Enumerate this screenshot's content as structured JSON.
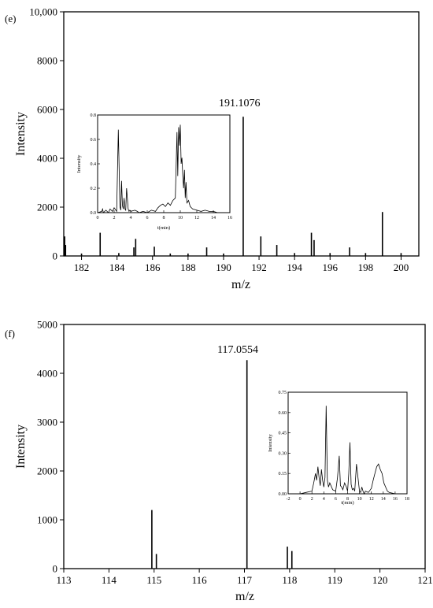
{
  "chart_data": [
    {
      "type": "bar",
      "panel_label": "(e)",
      "xlabel": "m/z",
      "ylabel": "Intensity",
      "xlim": [
        181,
        201
      ],
      "ylim": [
        0,
        10000
      ],
      "xticks": [
        182,
        184,
        186,
        188,
        190,
        192,
        194,
        196,
        198,
        200
      ],
      "yticks": [
        0,
        2000,
        4000,
        6000,
        8000,
        10000
      ],
      "ytick_labels": [
        "0",
        "2000",
        "4000",
        "6000",
        "8000",
        "10,000"
      ],
      "peak_label": "191.1076",
      "peaks": [
        {
          "x": 181.05,
          "y": 800
        },
        {
          "x": 181.1,
          "y": 450
        },
        {
          "x": 182.0,
          "y": 100
        },
        {
          "x": 183.05,
          "y": 950
        },
        {
          "x": 184.1,
          "y": 120
        },
        {
          "x": 184.95,
          "y": 350
        },
        {
          "x": 185.05,
          "y": 700
        },
        {
          "x": 186.1,
          "y": 380
        },
        {
          "x": 187.0,
          "y": 100
        },
        {
          "x": 188.0,
          "y": 100
        },
        {
          "x": 189.05,
          "y": 350
        },
        {
          "x": 190.0,
          "y": 100
        },
        {
          "x": 191.1076,
          "y": 5700
        },
        {
          "x": 192.1,
          "y": 800
        },
        {
          "x": 193.0,
          "y": 450
        },
        {
          "x": 194.0,
          "y": 120
        },
        {
          "x": 194.95,
          "y": 950
        },
        {
          "x": 195.1,
          "y": 650
        },
        {
          "x": 196.0,
          "y": 120
        },
        {
          "x": 197.1,
          "y": 350
        },
        {
          "x": 198.0,
          "y": 120
        },
        {
          "x": 198.95,
          "y": 1800
        },
        {
          "x": 200.0,
          "y": 120
        }
      ],
      "inset": {
        "type": "line",
        "xlabel": "t(min)",
        "ylabel": "Intensity",
        "xlim": [
          0,
          16
        ],
        "ylim": [
          0,
          0.8
        ],
        "xticks": [
          0,
          2,
          4,
          6,
          8,
          10,
          12,
          14,
          16
        ],
        "yticks": [
          0,
          0.2,
          0.4,
          0.6,
          0.8
        ],
        "ytick_labels": [
          "0.0",
          "0.2",
          "0.4",
          "0.6",
          "0.8"
        ],
        "x": [
          0.0,
          0.5,
          0.6,
          0.7,
          1.0,
          1.3,
          1.5,
          1.8,
          2.0,
          2.3,
          2.5,
          2.7,
          2.8,
          2.9,
          3.0,
          3.1,
          3.2,
          3.3,
          3.4,
          3.5,
          3.7,
          3.8,
          3.9,
          4.0,
          4.5,
          4.8,
          5.0,
          5.5,
          6.0,
          6.5,
          7.0,
          7.3,
          7.6,
          7.9,
          8.2,
          8.5,
          8.8,
          9.1,
          9.4,
          9.6,
          9.7,
          9.8,
          9.9,
          10.0,
          10.1,
          10.2,
          10.3,
          10.4,
          10.5,
          10.6,
          10.7,
          10.8,
          11.0,
          11.2,
          11.5,
          12.0,
          12.5,
          13.0,
          13.5,
          14.0,
          14.5,
          15.0,
          16.0
        ],
        "y": [
          0.0,
          0.01,
          0.03,
          0.0,
          0.02,
          0.0,
          0.03,
          0.01,
          0.04,
          0.01,
          0.68,
          0.05,
          0.02,
          0.26,
          0.06,
          0.03,
          0.12,
          0.03,
          0.02,
          0.2,
          0.03,
          0.01,
          0.02,
          0.01,
          0.02,
          0.01,
          0.0,
          0.01,
          0.0,
          0.02,
          0.01,
          0.04,
          0.06,
          0.07,
          0.05,
          0.08,
          0.06,
          0.1,
          0.12,
          0.66,
          0.3,
          0.7,
          0.55,
          0.72,
          0.4,
          0.45,
          0.3,
          0.2,
          0.35,
          0.12,
          0.25,
          0.08,
          0.1,
          0.05,
          0.03,
          0.02,
          0.01,
          0.02,
          0.01,
          0.01,
          0.0,
          0.0,
          0.0
        ]
      }
    },
    {
      "type": "bar",
      "panel_label": "(f)",
      "xlabel": "m/z",
      "ylabel": "Intensity",
      "xlim": [
        113,
        121
      ],
      "ylim": [
        0,
        5000
      ],
      "xticks": [
        113,
        114,
        115,
        116,
        117,
        118,
        119,
        120,
        121
      ],
      "yticks": [
        0,
        1000,
        2000,
        3000,
        4000,
        5000
      ],
      "ytick_labels": [
        "0",
        "1000",
        "2000",
        "3000",
        "4000",
        "5000"
      ],
      "peak_label": "117.0554",
      "peaks": [
        {
          "x": 114.95,
          "y": 1200
        },
        {
          "x": 115.05,
          "y": 300
        },
        {
          "x": 117.0554,
          "y": 4270
        },
        {
          "x": 117.95,
          "y": 450
        },
        {
          "x": 118.05,
          "y": 360
        }
      ],
      "inset": {
        "type": "line",
        "xlabel": "t(min)",
        "ylabel": "Intensity",
        "xlim": [
          -2,
          18
        ],
        "ylim": [
          0,
          0.75
        ],
        "xticks": [
          -2,
          0,
          2,
          4,
          6,
          8,
          10,
          12,
          14,
          16,
          18
        ],
        "yticks": [
          0,
          0.15,
          0.3,
          0.45,
          0.6,
          0.75
        ],
        "ytick_labels": [
          "0.00",
          "0.15",
          "0.30",
          "0.45",
          "0.60",
          "0.75"
        ],
        "x": [
          -2.0,
          0.0,
          1.0,
          2.0,
          2.3,
          2.6,
          2.8,
          3.0,
          3.2,
          3.4,
          3.6,
          3.8,
          4.0,
          4.2,
          4.4,
          4.6,
          4.8,
          5.0,
          5.5,
          6.0,
          6.3,
          6.6,
          6.8,
          7.0,
          7.2,
          7.5,
          7.8,
          8.0,
          8.2,
          8.4,
          8.6,
          8.8,
          9.0,
          9.2,
          9.5,
          10.0,
          10.2,
          10.4,
          10.6,
          10.8,
          11.0,
          11.5,
          12.0,
          12.3,
          12.6,
          12.9,
          13.2,
          13.5,
          13.8,
          14.1,
          14.4,
          14.7,
          15.0,
          16.0,
          18.0
        ],
        "y": [
          0.0,
          0.0,
          0.01,
          0.02,
          0.08,
          0.15,
          0.1,
          0.2,
          0.12,
          0.06,
          0.18,
          0.1,
          0.05,
          0.12,
          0.65,
          0.1,
          0.05,
          0.08,
          0.03,
          0.02,
          0.12,
          0.28,
          0.06,
          0.05,
          0.03,
          0.08,
          0.05,
          0.02,
          0.15,
          0.38,
          0.07,
          0.03,
          0.04,
          0.02,
          0.22,
          0.02,
          0.01,
          0.05,
          0.02,
          0.0,
          0.02,
          0.01,
          0.04,
          0.1,
          0.15,
          0.2,
          0.22,
          0.18,
          0.15,
          0.08,
          0.05,
          0.02,
          0.01,
          0.0,
          0.0
        ]
      }
    }
  ]
}
